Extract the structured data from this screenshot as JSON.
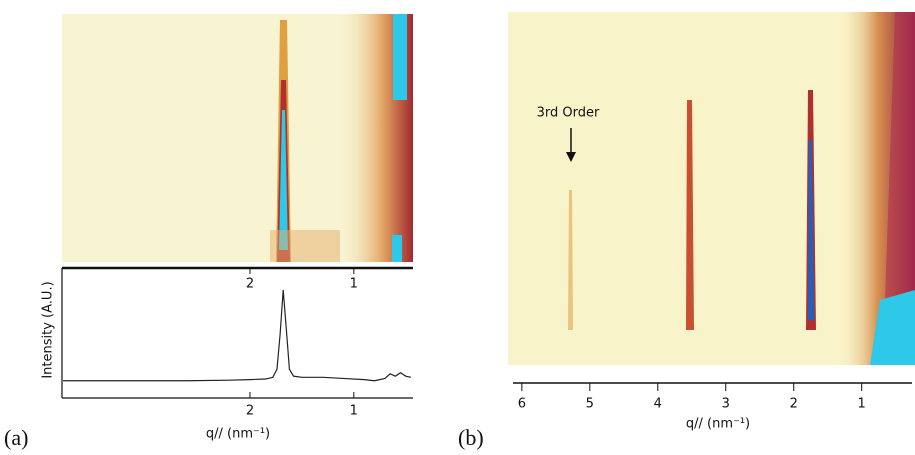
{
  "chart_data": [
    {
      "type": "line",
      "panel_label": "(a)",
      "x_label": "q// (nm⁻¹)",
      "y_label": "Intensity (A.U.)",
      "xlim": [
        3.81,
        0.43
      ],
      "xticks": [
        2,
        1
      ],
      "ylim": [
        0,
        1
      ],
      "x": [
        3.8,
        3.4,
        3.0,
        2.6,
        2.2,
        2.0,
        1.85,
        1.78,
        1.74,
        1.71,
        1.68,
        1.65,
        1.62,
        1.58,
        1.5,
        1.3,
        1.1,
        0.9,
        0.8,
        0.7,
        0.65,
        0.6,
        0.55,
        0.5,
        0.45
      ],
      "series": [
        {
          "color": "#222222",
          "values": [
            0.15,
            0.15,
            0.15,
            0.15,
            0.155,
            0.16,
            0.165,
            0.18,
            0.25,
            0.55,
            0.94,
            0.6,
            0.25,
            0.19,
            0.18,
            0.18,
            0.17,
            0.16,
            0.15,
            0.17,
            0.21,
            0.19,
            0.22,
            0.19,
            0.18
          ]
        }
      ]
    },
    {
      "type": "image",
      "panel_label": "(b)",
      "x_label": "q// (nm⁻¹)",
      "annotation": "3rd Order",
      "xlim": [
        6.13,
        0.26
      ],
      "xticks": [
        6,
        5,
        4,
        3,
        2,
        1
      ]
    }
  ]
}
